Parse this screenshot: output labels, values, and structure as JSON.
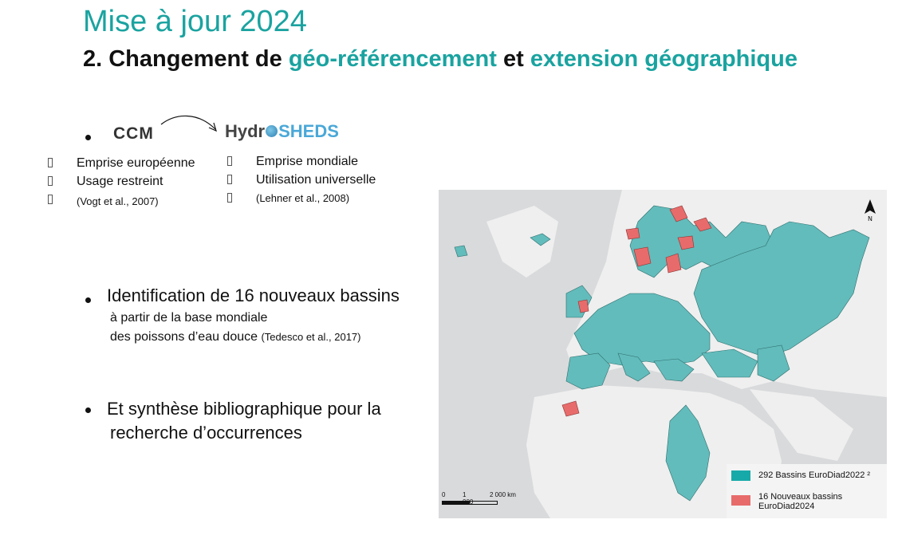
{
  "slide": {
    "title": "Mise à jour 2024",
    "subtitle_prefix": "2.  Changement de ",
    "subtitle_hl1": "géo-référencement",
    "subtitle_mid": " et ",
    "subtitle_hl2": "extension géographique"
  },
  "logos": {
    "ccm": "CCM",
    "hydro_a": "Hydr",
    "hydro_b": "SHEDS"
  },
  "ccm_list": {
    "item1": "Emprise européenne",
    "item2": "Usage restreint",
    "item3": "(Vogt et al., 2007)"
  },
  "hydro_list": {
    "item1": "Emprise mondiale",
    "item2": "Utilisation universelle",
    "item3": "(Lehner et al., 2008)"
  },
  "bullet2": {
    "main": "Identification de 16 nouveaux bassins",
    "line2": "à partir de la base mondiale",
    "line3": "des poissons d’eau douce ",
    "ref": "(Tedesco et al., 2017)"
  },
  "bullet3": {
    "line1": "Et synthèse bibliographique pour la",
    "line2": "recherche d’occurrences"
  },
  "map": {
    "legend_teal": "292 Bassins EuroDiad2022 ²",
    "legend_red_1": "16 Nouveaux bassins",
    "legend_red_2": "EuroDiad2024",
    "scale_0": "0",
    "scale_1": "1 000",
    "scale_2": "2 000 km",
    "north": "N",
    "colors": {
      "teal": "#17a9a9",
      "basin": "#62bcbb",
      "red": "#e86b6b",
      "land": "#f0f0f0",
      "sea": "#d9dadc"
    }
  }
}
